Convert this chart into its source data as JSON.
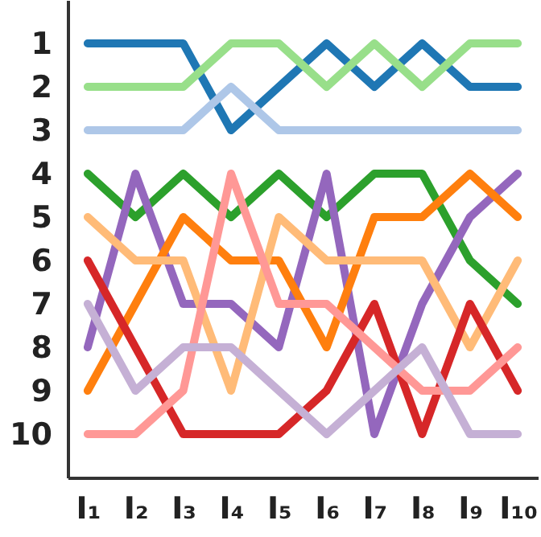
{
  "chart_data": {
    "type": "line",
    "categories": [
      "I₁",
      "I₂",
      "I₃",
      "I₄",
      "I₅",
      "I₆",
      "I₇",
      "I₈",
      "I₉",
      "I₁₀"
    ],
    "series": [
      {
        "color": "#1f77b4",
        "values": [
          1,
          1,
          1,
          3,
          2,
          1,
          2,
          1,
          2,
          2
        ]
      },
      {
        "color": "#98df8a",
        "values": [
          2,
          2,
          2,
          1,
          1,
          2,
          1,
          2,
          1,
          1
        ]
      },
      {
        "color": "#aec7e8",
        "values": [
          3,
          3,
          3,
          2,
          3,
          3,
          3,
          3,
          3,
          3
        ]
      },
      {
        "color": "#2ca02c",
        "values": [
          4,
          5,
          4,
          5,
          4,
          5,
          4,
          4,
          6,
          7
        ]
      },
      {
        "color": "#9467bd",
        "values": [
          8,
          4,
          7,
          7,
          8,
          4,
          10,
          7,
          5,
          4
        ]
      },
      {
        "color": "#ff7f0e",
        "values": [
          9,
          7,
          5,
          6,
          6,
          8,
          5,
          5,
          4,
          5
        ]
      },
      {
        "color": "#ffbb78",
        "values": [
          5,
          6,
          6,
          9,
          5,
          6,
          6,
          6,
          8,
          6
        ]
      },
      {
        "color": "#d62728",
        "values": [
          6,
          8,
          10,
          10,
          10,
          9,
          7,
          10,
          7,
          9
        ]
      },
      {
        "color": "#ff9896",
        "values": [
          10,
          10,
          9,
          4,
          7,
          7,
          8,
          9,
          9,
          8
        ]
      },
      {
        "color": "#c5b0d5",
        "values": [
          7,
          9,
          8,
          8,
          9,
          10,
          9,
          8,
          10,
          10
        ]
      }
    ],
    "ylim": [
      11,
      0
    ],
    "yticks": [
      1,
      2,
      3,
      4,
      5,
      6,
      7,
      8,
      9,
      10
    ],
    "grid": false,
    "marker": "none",
    "line_style": "solid"
  }
}
